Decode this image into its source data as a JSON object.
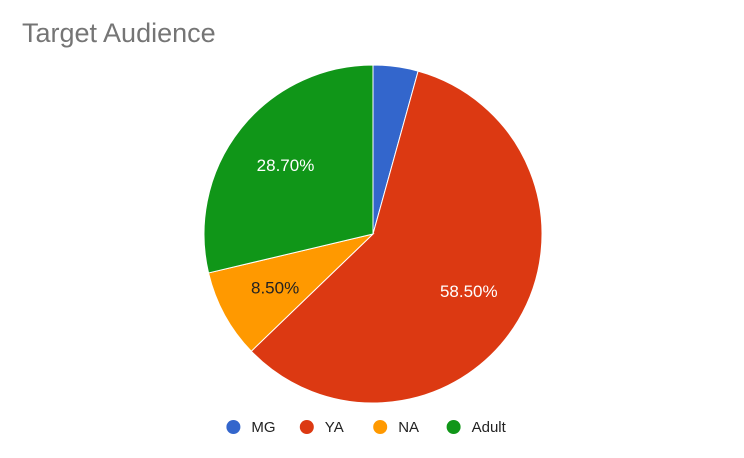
{
  "chart_data": {
    "type": "pie",
    "title": "Target Audience",
    "categories": [
      "MG",
      "YA",
      "NA",
      "Adult"
    ],
    "values": [
      4.3,
      58.5,
      8.5,
      28.7
    ],
    "value_labels": [
      "",
      "58.50%",
      "8.50%",
      "28.70%"
    ],
    "colors": [
      "#3366cc",
      "#dc3912",
      "#ff9900",
      "#109618"
    ],
    "label_colors": [
      "#ffffff",
      "#ffffff",
      "#222222",
      "#ffffff"
    ],
    "start_angle_deg": 0,
    "direction": "clockwise",
    "legend_position": "bottom"
  }
}
